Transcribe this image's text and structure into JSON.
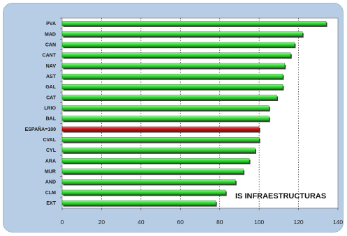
{
  "chart_data": {
    "type": "bar",
    "orientation": "horizontal",
    "title": "",
    "annotation": "IS INFRAESTRUCTURAS",
    "categories": [
      "PVA",
      "MAD",
      "CAN",
      "CANT",
      "NAV",
      "AST",
      "GAL",
      "CAT",
      "LRIO",
      "BAL",
      "ESPAÑA=100",
      "CVAL",
      "CYL",
      "ARA",
      "MUR",
      "AND",
      "CLM",
      "EXT"
    ],
    "values": [
      134,
      122,
      118,
      116,
      113,
      112,
      112,
      109,
      105,
      105,
      100,
      100,
      98,
      95,
      92,
      88,
      83,
      78
    ],
    "highlight_category": "ESPAÑA=100",
    "xlim": [
      0,
      140
    ],
    "xticks": [
      0,
      20,
      40,
      60,
      80,
      100,
      120,
      140
    ],
    "grid": "vertical dashed",
    "colors": {
      "bar": "#33dd33",
      "highlight": "#cc1111",
      "plot_background": "#ffffff",
      "frame_background": "#b7cde6"
    }
  }
}
